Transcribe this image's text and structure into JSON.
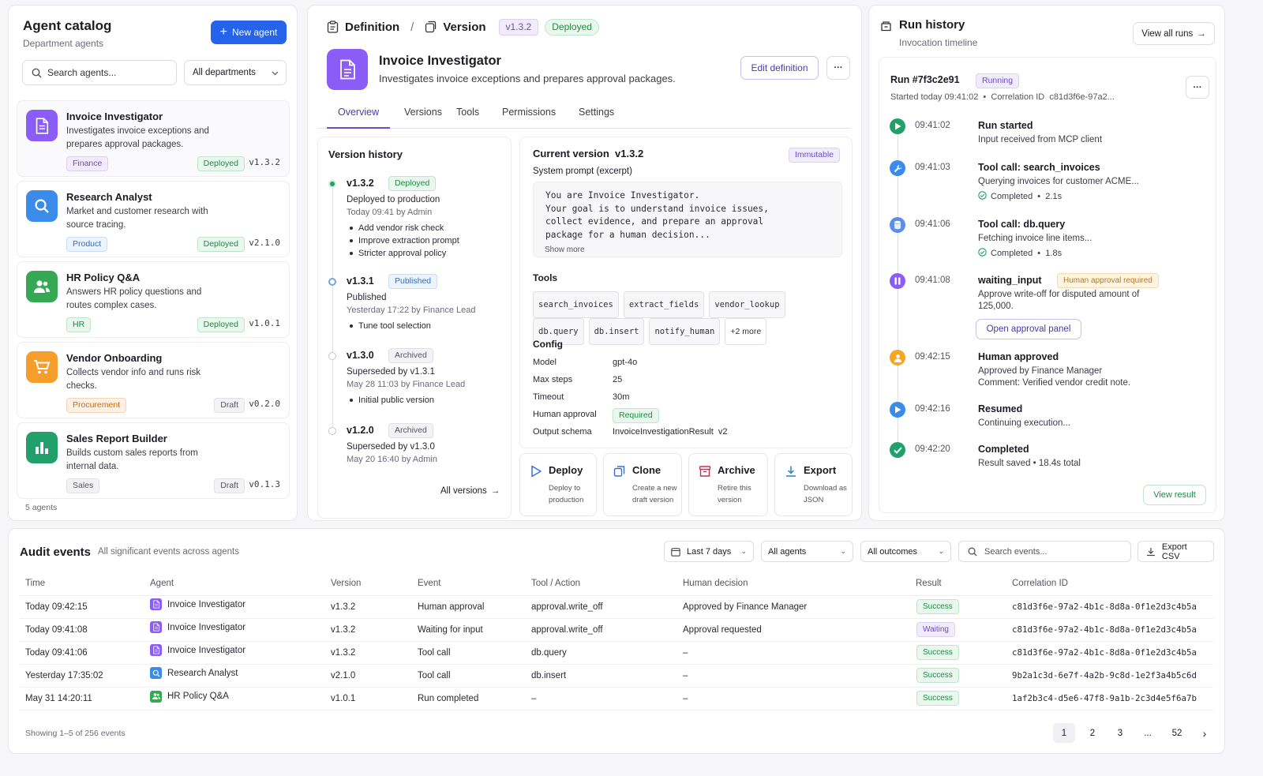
{
  "catalog": {
    "title": "Agent catalog",
    "subtitle": "Department agents",
    "new_agent_label": "New agent",
    "search_placeholder": "Search agents...",
    "department_filter": "All departments",
    "count": "5 agents",
    "agents": [
      {
        "name": "Invoice Investigator",
        "desc": "Investigates invoice exceptions and prepares approval packages.",
        "department": "Finance",
        "status": "Deployed",
        "version": "v1.3.2",
        "icon": "document-icon",
        "color": "#8b5cf6"
      },
      {
        "name": "Research Analyst",
        "desc": "Market and customer research with source tracing.",
        "department": "Product",
        "status": "Deployed",
        "version": "v2.1.0",
        "icon": "search-icon",
        "color": "#3b8bea"
      },
      {
        "name": "HR Policy Q&A",
        "desc": "Answers HR policy questions and routes complex cases.",
        "department": "HR",
        "status": "Deployed",
        "version": "v1.0.1",
        "icon": "people-icon",
        "color": "#34a853"
      },
      {
        "name": "Vendor Onboarding",
        "desc": "Collects vendor info and runs risk checks.",
        "department": "Procurement",
        "status": "Draft",
        "version": "v0.2.0",
        "icon": "cart-icon",
        "color": "#f59e2b"
      },
      {
        "name": "Sales Report Builder",
        "desc": "Builds custom sales reports from internal data.",
        "department": "Sales",
        "status": "Draft",
        "version": "v0.1.3",
        "icon": "bar-chart-icon",
        "color": "#22a06b"
      }
    ]
  },
  "definition": {
    "crumb_definition": "Definition",
    "crumb_sep": "/",
    "crumb_version": "Version",
    "version": "v1.3.2",
    "status": "Deployed",
    "agent_name": "Invoice Investigator",
    "agent_desc": "Investigates invoice exceptions and prepares approval packages.",
    "edit_label": "Edit definition",
    "more_label": "···",
    "tabs": [
      "Overview",
      "Versions",
      "Tools",
      "Permissions",
      "Settings"
    ],
    "active_tab": "Overview"
  },
  "version_history": {
    "title": "Version history",
    "items": [
      {
        "version": "v1.3.2",
        "badge": "Deployed",
        "line1": "Deployed to production",
        "line2": "Today 09:41 by Admin",
        "notes": [
          "Add vendor risk check",
          "Improve extraction prompt",
          "Stricter approval policy"
        ]
      },
      {
        "version": "v1.3.1",
        "badge": "Published",
        "line1": "Published",
        "line2": "Yesterday 17:22 by Finance Lead",
        "notes": [
          "Tune tool selection"
        ]
      },
      {
        "version": "v1.3.0",
        "badge": "Archived",
        "line1": "Superseded by v1.3.1",
        "line2": "May 28 11:03 by Finance Lead",
        "notes": [
          "Initial public version"
        ]
      },
      {
        "version": "v1.2.0",
        "badge": "Archived",
        "line1": "Superseded by v1.3.0",
        "line2": "May 20 16:40 by Admin",
        "notes": []
      }
    ],
    "all_versions": "All versions"
  },
  "current_version": {
    "title": "Current version",
    "version": "v1.3.2",
    "immutable": "Immutable",
    "prompt_label": "System prompt (excerpt)",
    "prompt_lines": [
      "You are Invoice Investigator.",
      "Your goal is to understand invoice issues,",
      "collect evidence, and prepare an approval",
      "package for a human decision..."
    ],
    "show_more": "Show more",
    "tools_label": "Tools",
    "tools": [
      "search_invoices",
      "extract_fields",
      "vendor_lookup",
      "db.query",
      "db.insert",
      "notify_human"
    ],
    "tools_more": "+2 more",
    "config_label": "Config",
    "config": [
      {
        "key": "Model",
        "value": "gpt-4o"
      },
      {
        "key": "Max steps",
        "value": "25"
      },
      {
        "key": "Timeout",
        "value": "30m"
      },
      {
        "key": "Human approval",
        "value": "Required"
      },
      {
        "key": "Output schema",
        "value": "InvoiceInvestigationResult  v2"
      }
    ]
  },
  "actions": [
    {
      "title": "Deploy",
      "desc": "Deploy to production",
      "icon": "play-icon"
    },
    {
      "title": "Clone",
      "desc": "Create a new draft version",
      "icon": "clone-icon"
    },
    {
      "title": "Archive",
      "desc": "Retire this version",
      "icon": "archive-icon"
    },
    {
      "title": "Export",
      "desc": "Download as JSON",
      "icon": "download-icon"
    }
  ],
  "run_history": {
    "title": "Run history",
    "subtitle": "Invocation timeline",
    "view_all": "View all runs",
    "run_id": "Run #7f3c2e91",
    "run_status": "Running",
    "run_meta": "Started today 09:41:02  •  Correlation ID  c81d3f6e-97a2...",
    "events": [
      {
        "time": "09:41:02",
        "title": "Run started",
        "desc": "Input received from MCP client",
        "meta": "",
        "icon": "play-icon",
        "color": "#22a06b"
      },
      {
        "time": "09:41:03",
        "title": "Tool call: search_invoices",
        "desc": "Querying invoices for customer ACME...",
        "meta": "Completed  •  2.1s",
        "icon": "wrench-icon",
        "color": "#3b8bea"
      },
      {
        "time": "09:41:06",
        "title": "Tool call: db.query",
        "desc": "Fetching invoice line items...",
        "meta": "Completed  •  1.8s",
        "icon": "database-icon",
        "color": "#5b8def"
      },
      {
        "time": "09:41:08",
        "title": "waiting_input",
        "desc": "Approve write-off for disputed amount of 125,000.",
        "meta": "",
        "badge": "Human approval required",
        "icon": "pause-icon",
        "color": "#8b5cf6"
      },
      {
        "time": "09:42:15",
        "title": "Human approved",
        "desc": "Approved by Finance Manager\nComment: Verified vendor credit note.",
        "meta": "",
        "icon": "person-icon",
        "color": "#f5a623"
      },
      {
        "time": "09:42:16",
        "title": "Resumed",
        "desc": "Continuing execution...",
        "meta": "",
        "icon": "play-icon",
        "color": "#3b8bea"
      },
      {
        "time": "09:42:20",
        "title": "Completed",
        "desc": "Result saved  •  18.4s total",
        "meta": "",
        "icon": "check-icon",
        "color": "#22a06b"
      }
    ],
    "approval_button": "Open approval panel",
    "view_result": "View result"
  },
  "audit": {
    "title": "Audit events",
    "subtitle": "All significant events across agents",
    "date_filter": "Last 7 days",
    "agent_filter": "All agents",
    "outcome_filter": "All outcomes",
    "search_placeholder": "Search events...",
    "export_label": "Export CSV",
    "columns": [
      "Time",
      "Agent",
      "Version",
      "Event",
      "Tool / Action",
      "Human decision",
      "Result",
      "Correlation ID"
    ],
    "rows": [
      {
        "time": "Today 09:42:15",
        "agent": "Invoice Investigator",
        "agent_color": "#8b5cf6",
        "version": "v1.3.2",
        "event": "Human approval",
        "tool": "approval.write_off",
        "decision": "Approved by Finance Manager",
        "result": "Success",
        "corr": "c81d3f6e-97a2-4b1c-8d8a-0f1e2d3c4b5a"
      },
      {
        "time": "Today 09:41:08",
        "agent": "Invoice Investigator",
        "agent_color": "#8b5cf6",
        "version": "v1.3.2",
        "event": "Waiting for input",
        "tool": "approval.write_off",
        "decision": "Approval requested",
        "result": "Waiting",
        "corr": "c81d3f6e-97a2-4b1c-8d8a-0f1e2d3c4b5a"
      },
      {
        "time": "Today 09:41:06",
        "agent": "Invoice Investigator",
        "agent_color": "#8b5cf6",
        "version": "v1.3.2",
        "event": "Tool call",
        "tool": "db.query",
        "decision": "–",
        "result": "Success",
        "corr": "c81d3f6e-97a2-4b1c-8d8a-0f1e2d3c4b5a"
      },
      {
        "time": "Yesterday 17:35:02",
        "agent": "Research Analyst",
        "agent_color": "#3b8bea",
        "version": "v2.1.0",
        "event": "Tool call",
        "tool": "db.insert",
        "decision": "–",
        "result": "Success",
        "corr": "9b2a1c3d-6e7f-4a2b-9c8d-1e2f3a4b5c6d"
      },
      {
        "time": "May 31 14:20:11",
        "agent": "HR Policy Q&A",
        "agent_color": "#34a853",
        "version": "v1.0.1",
        "event": "Run completed",
        "tool": "–",
        "decision": "–",
        "result": "Success",
        "corr": "1af2b3c4-d5e6-47f8-9a1b-2c3d4e5f6a7b"
      }
    ],
    "showing": "Showing 1–5 of 256 events",
    "pages": [
      "1",
      "2",
      "3",
      "...",
      "52"
    ],
    "current_page": "1"
  }
}
